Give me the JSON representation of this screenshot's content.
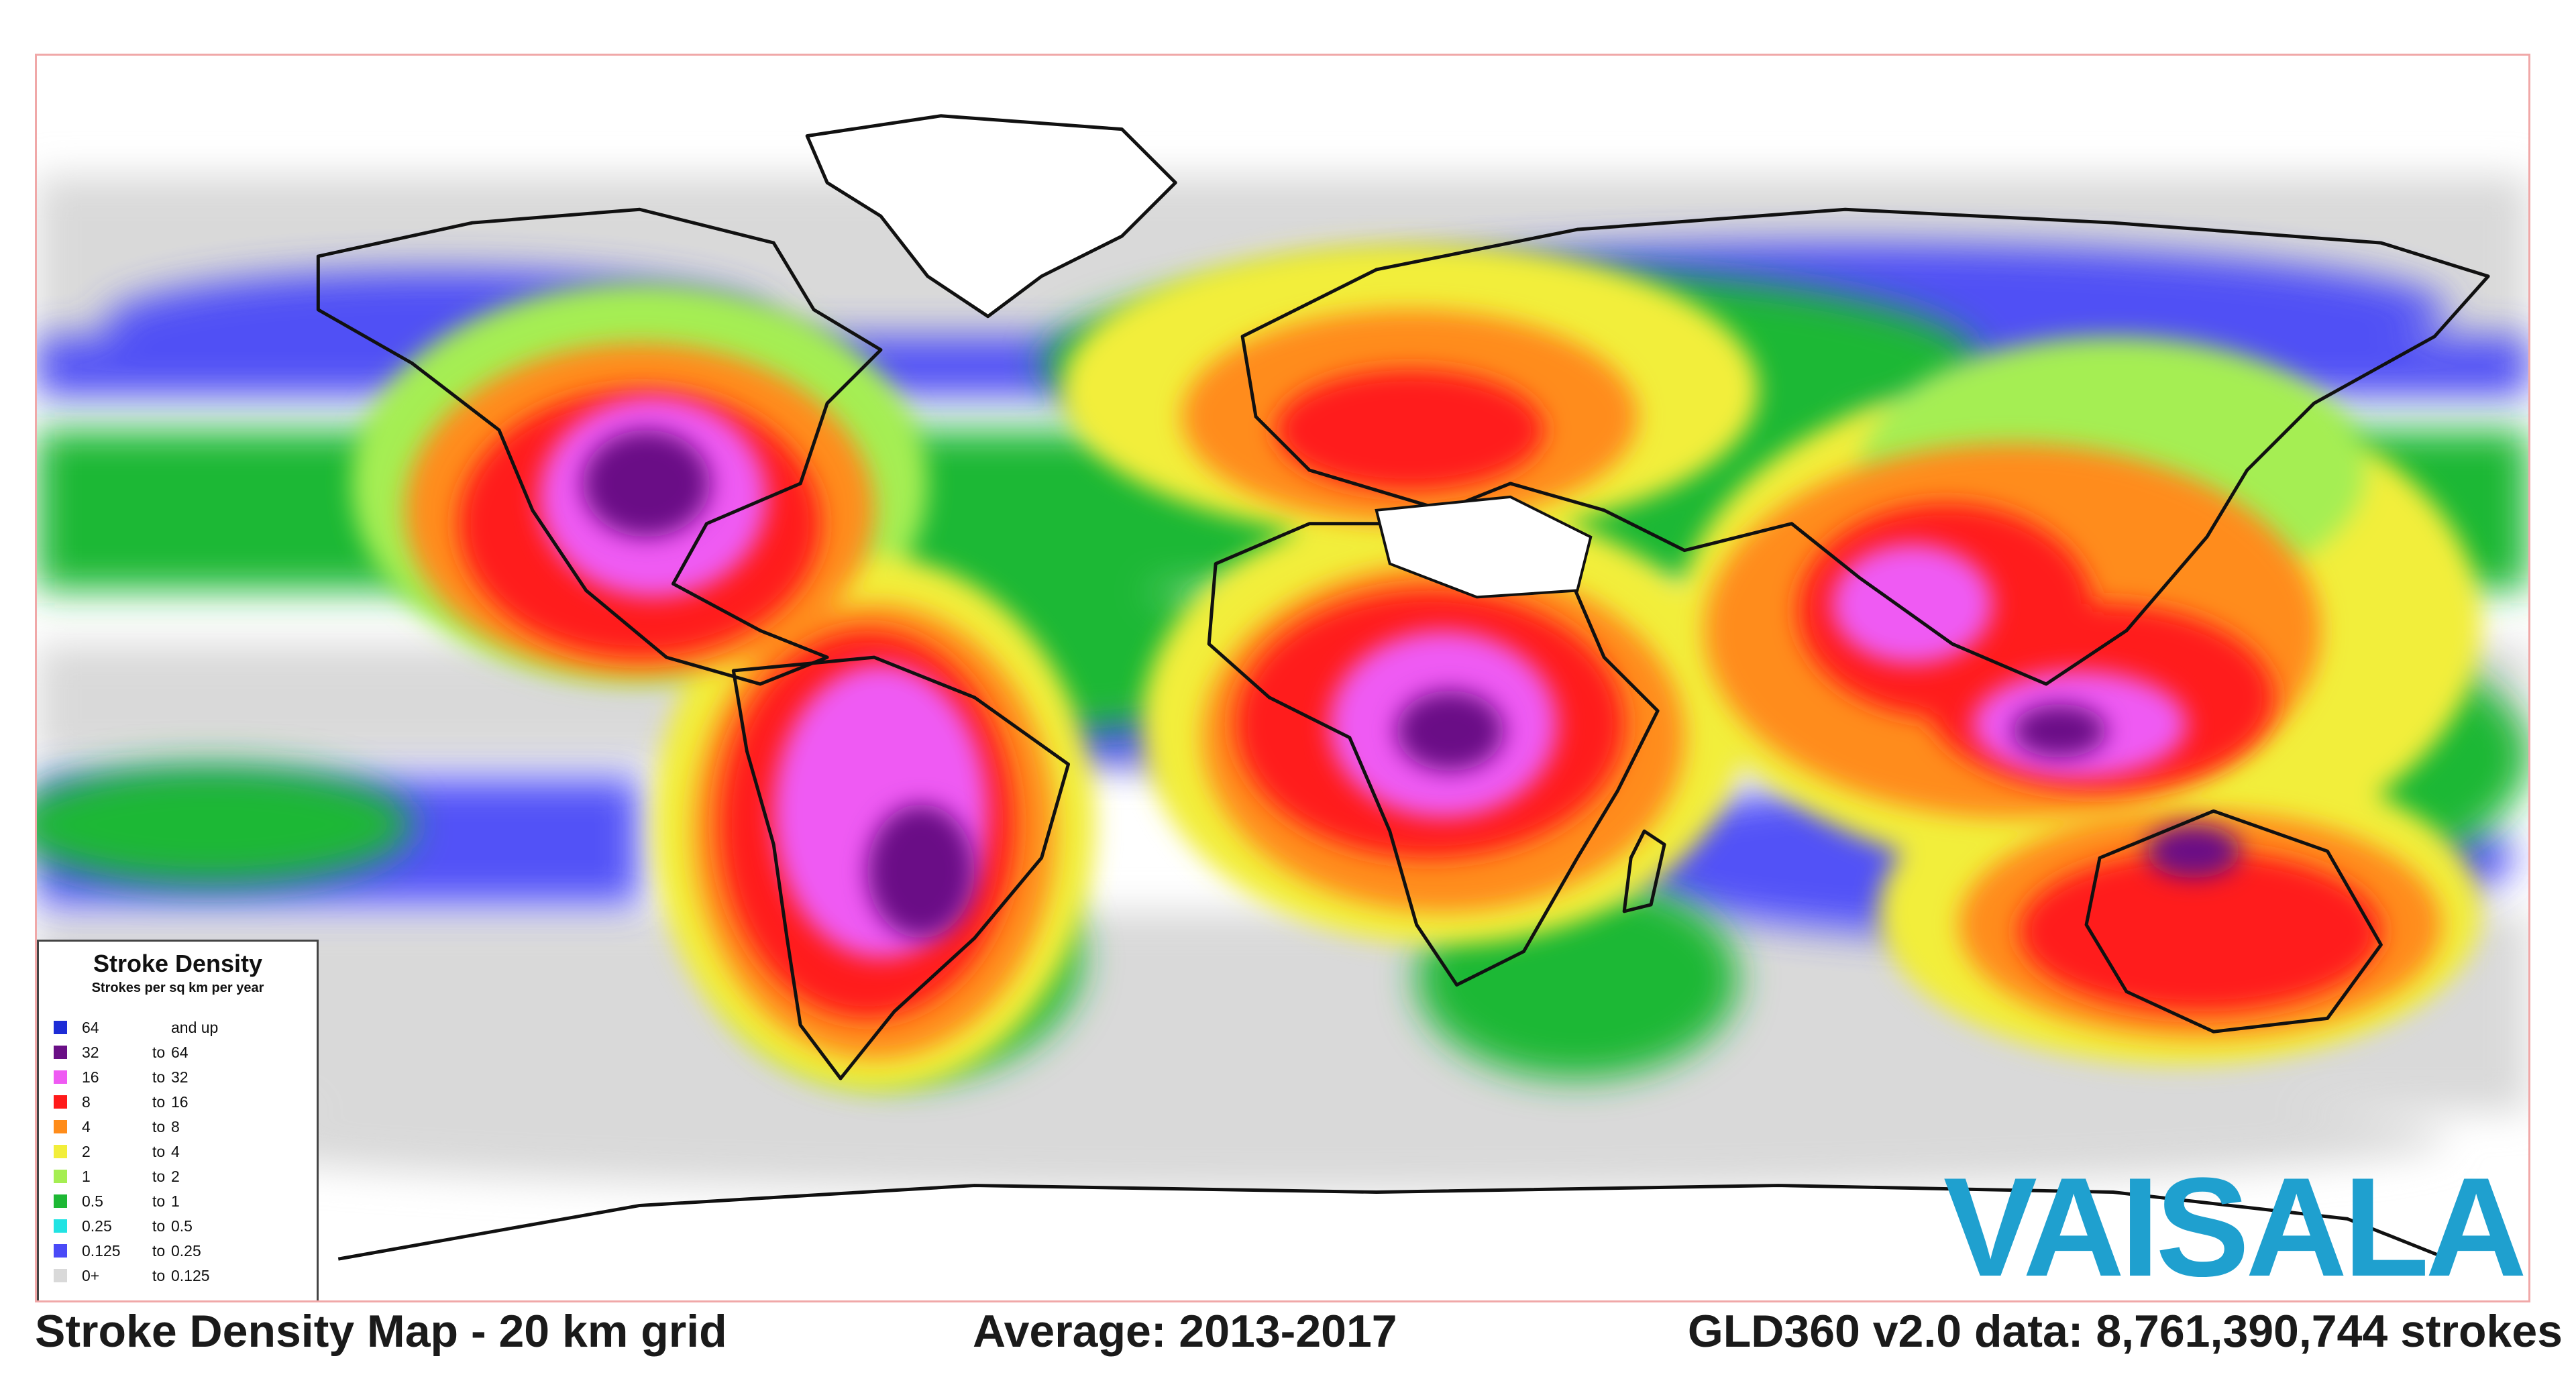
{
  "legend": {
    "title": "Stroke Density",
    "subtitle": "Strokes per sq km per year",
    "items": [
      {
        "from": "64",
        "to_word": "",
        "to": "and up",
        "color": "#1d2cd6"
      },
      {
        "from": "32",
        "to_word": "to",
        "to": "64",
        "color": "#6a0f86"
      },
      {
        "from": "16",
        "to_word": "to",
        "to": "32",
        "color": "#ef5af3"
      },
      {
        "from": "8",
        "to_word": "to",
        "to": "16",
        "color": "#ff1a1a"
      },
      {
        "from": "4",
        "to_word": "to",
        "to": "8",
        "color": "#ff8c1a"
      },
      {
        "from": "2",
        "to_word": "to",
        "to": "4",
        "color": "#f2ee3a"
      },
      {
        "from": "1",
        "to_word": "to",
        "to": "2",
        "color": "#a5ee52"
      },
      {
        "from": "0.5",
        "to_word": "to",
        "to": "1",
        "color": "#1db834"
      },
      {
        "from": "0.25",
        "to_word": "to",
        "to": "0.5",
        "color": "#21e3e3"
      },
      {
        "from": "0.125",
        "to_word": "to",
        "to": "0.25",
        "color": "#4a4af7"
      },
      {
        "from": "0+",
        "to_word": "to",
        "to": "0.125",
        "color": "#d9d9d9"
      }
    ]
  },
  "brand": {
    "logo_text": "VAISALA",
    "color": "#1fa0cf"
  },
  "caption": {
    "left": "Stroke Density Map - 20 km grid",
    "center": "Average: 2013-2017",
    "right": "GLD360 v2.0 data: 8,761,390,744 strokes"
  }
}
